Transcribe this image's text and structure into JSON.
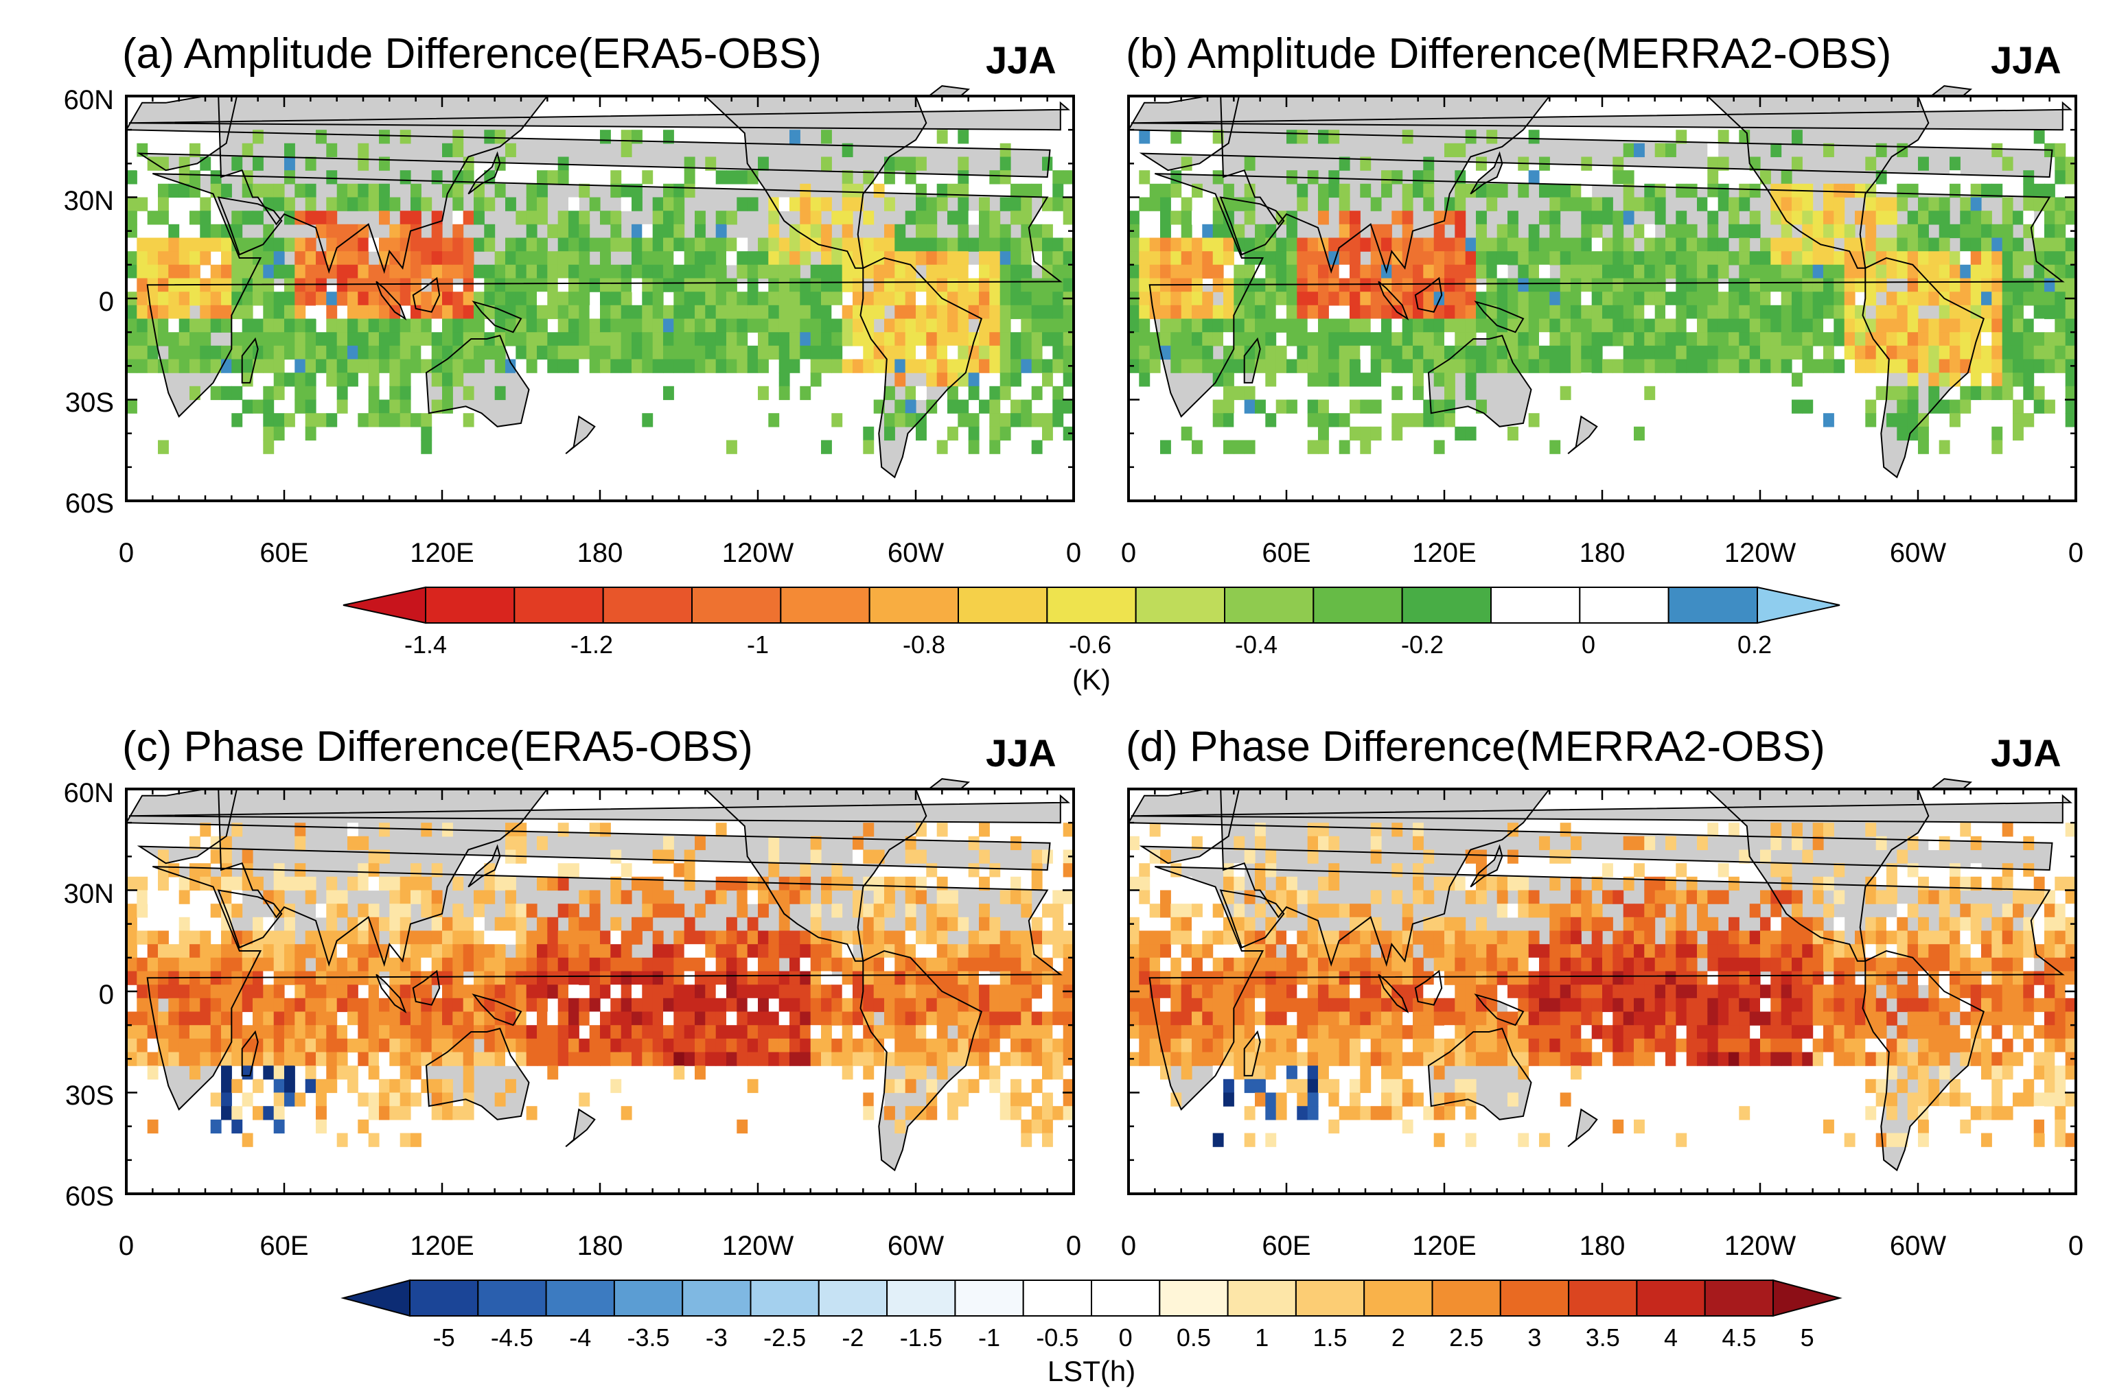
{
  "panels": [
    {
      "id": "a",
      "title": "(a) Amplitude Difference(ERA5-OBS)",
      "season": "JJA",
      "x_ticks": [
        "0",
        "60E",
        "120E",
        "180",
        "120W",
        "60W",
        "0"
      ],
      "field": "amplitude"
    },
    {
      "id": "b",
      "title": "(b) Amplitude Difference(MERRA2-OBS)",
      "season": "JJA",
      "x_ticks": [
        "0",
        "60E",
        "120E",
        "180",
        "120W",
        "60W",
        "0"
      ],
      "field": "amplitude"
    },
    {
      "id": "c",
      "title": "(c) Phase Difference(ERA5-OBS)",
      "season": "JJA",
      "x_ticks": [
        "0",
        "60E",
        "120E",
        "180",
        "120W",
        "60W",
        "0"
      ],
      "field": "phase"
    },
    {
      "id": "d",
      "title": "(d) Phase Difference(MERRA2-OBS)",
      "season": "JJA",
      "x_ticks": [
        "0",
        "60E",
        "120E",
        "180",
        "120W",
        "60W",
        "0"
      ],
      "field": "phase"
    }
  ],
  "y_ticks": [
    "60N",
    "30N",
    "0",
    "30S",
    "60S"
  ],
  "amplitude_colorbar": {
    "unit": "(K)",
    "labels": [
      "-1.4",
      "-1.2",
      "-1",
      "-0.8",
      "-0.6",
      "-0.4",
      "-0.2",
      "0",
      "0.2"
    ],
    "colors": [
      "#c8141c",
      "#d9251e",
      "#e23c23",
      "#e8562a",
      "#ee7230",
      "#f48a35",
      "#f8ad41",
      "#f5d049",
      "#eee34e",
      "#bfdc5a",
      "#8fcb4f",
      "#66bb46",
      "#48ad45",
      "#ffffff",
      "#ffffff",
      "#3f8dc4",
      "#8fcdee"
    ]
  },
  "phase_colorbar": {
    "unit": "LST(h)",
    "labels": [
      "-5",
      "-4.5",
      "-4",
      "-3.5",
      "-3",
      "-2.5",
      "-2",
      "-1.5",
      "-1",
      "-0.5",
      "0",
      "0.5",
      "1",
      "1.5",
      "2",
      "2.5",
      "3",
      "3.5",
      "4",
      "4.5",
      "5"
    ],
    "colors": [
      "#0c2c74",
      "#1b4597",
      "#2a5fae",
      "#3c7bc1",
      "#5b9dd3",
      "#7fb8e2",
      "#a4d0ee",
      "#c6e2f4",
      "#e2f0f9",
      "#f4f9fd",
      "#ffffff",
      "#ffffff",
      "#fff6d8",
      "#fde6a8",
      "#fccd74",
      "#f9b24a",
      "#f28f30",
      "#e96a22",
      "#db4520",
      "#c6281c",
      "#a71a1c",
      "#8c0e16"
    ]
  }
}
